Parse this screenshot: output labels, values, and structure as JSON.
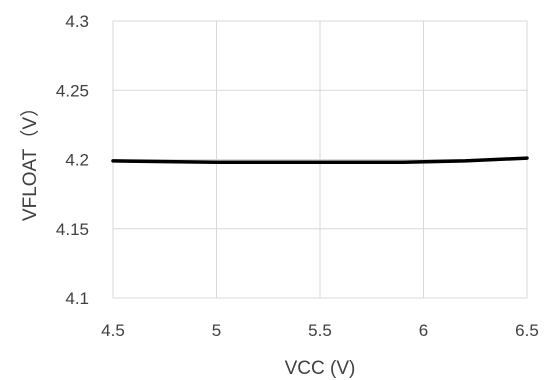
{
  "chart_data": {
    "type": "line",
    "xlabel": "VCC (V)",
    "ylabel": "VFLOAT（V）",
    "xlim": [
      4.5,
      6.5
    ],
    "ylim": [
      4.1,
      4.3
    ],
    "x_ticks": [
      "4.5",
      "5",
      "5.5",
      "6",
      "6.5"
    ],
    "y_ticks": [
      "4.1",
      "4.15",
      "4.2",
      "4.25",
      "4.3"
    ],
    "grid": true,
    "series": [
      {
        "color": "#000000",
        "x": [
          4.5,
          5.0,
          5.5,
          5.9,
          6.2,
          6.5
        ],
        "y": [
          4.199,
          4.198,
          4.198,
          4.198,
          4.199,
          4.201
        ]
      }
    ]
  }
}
